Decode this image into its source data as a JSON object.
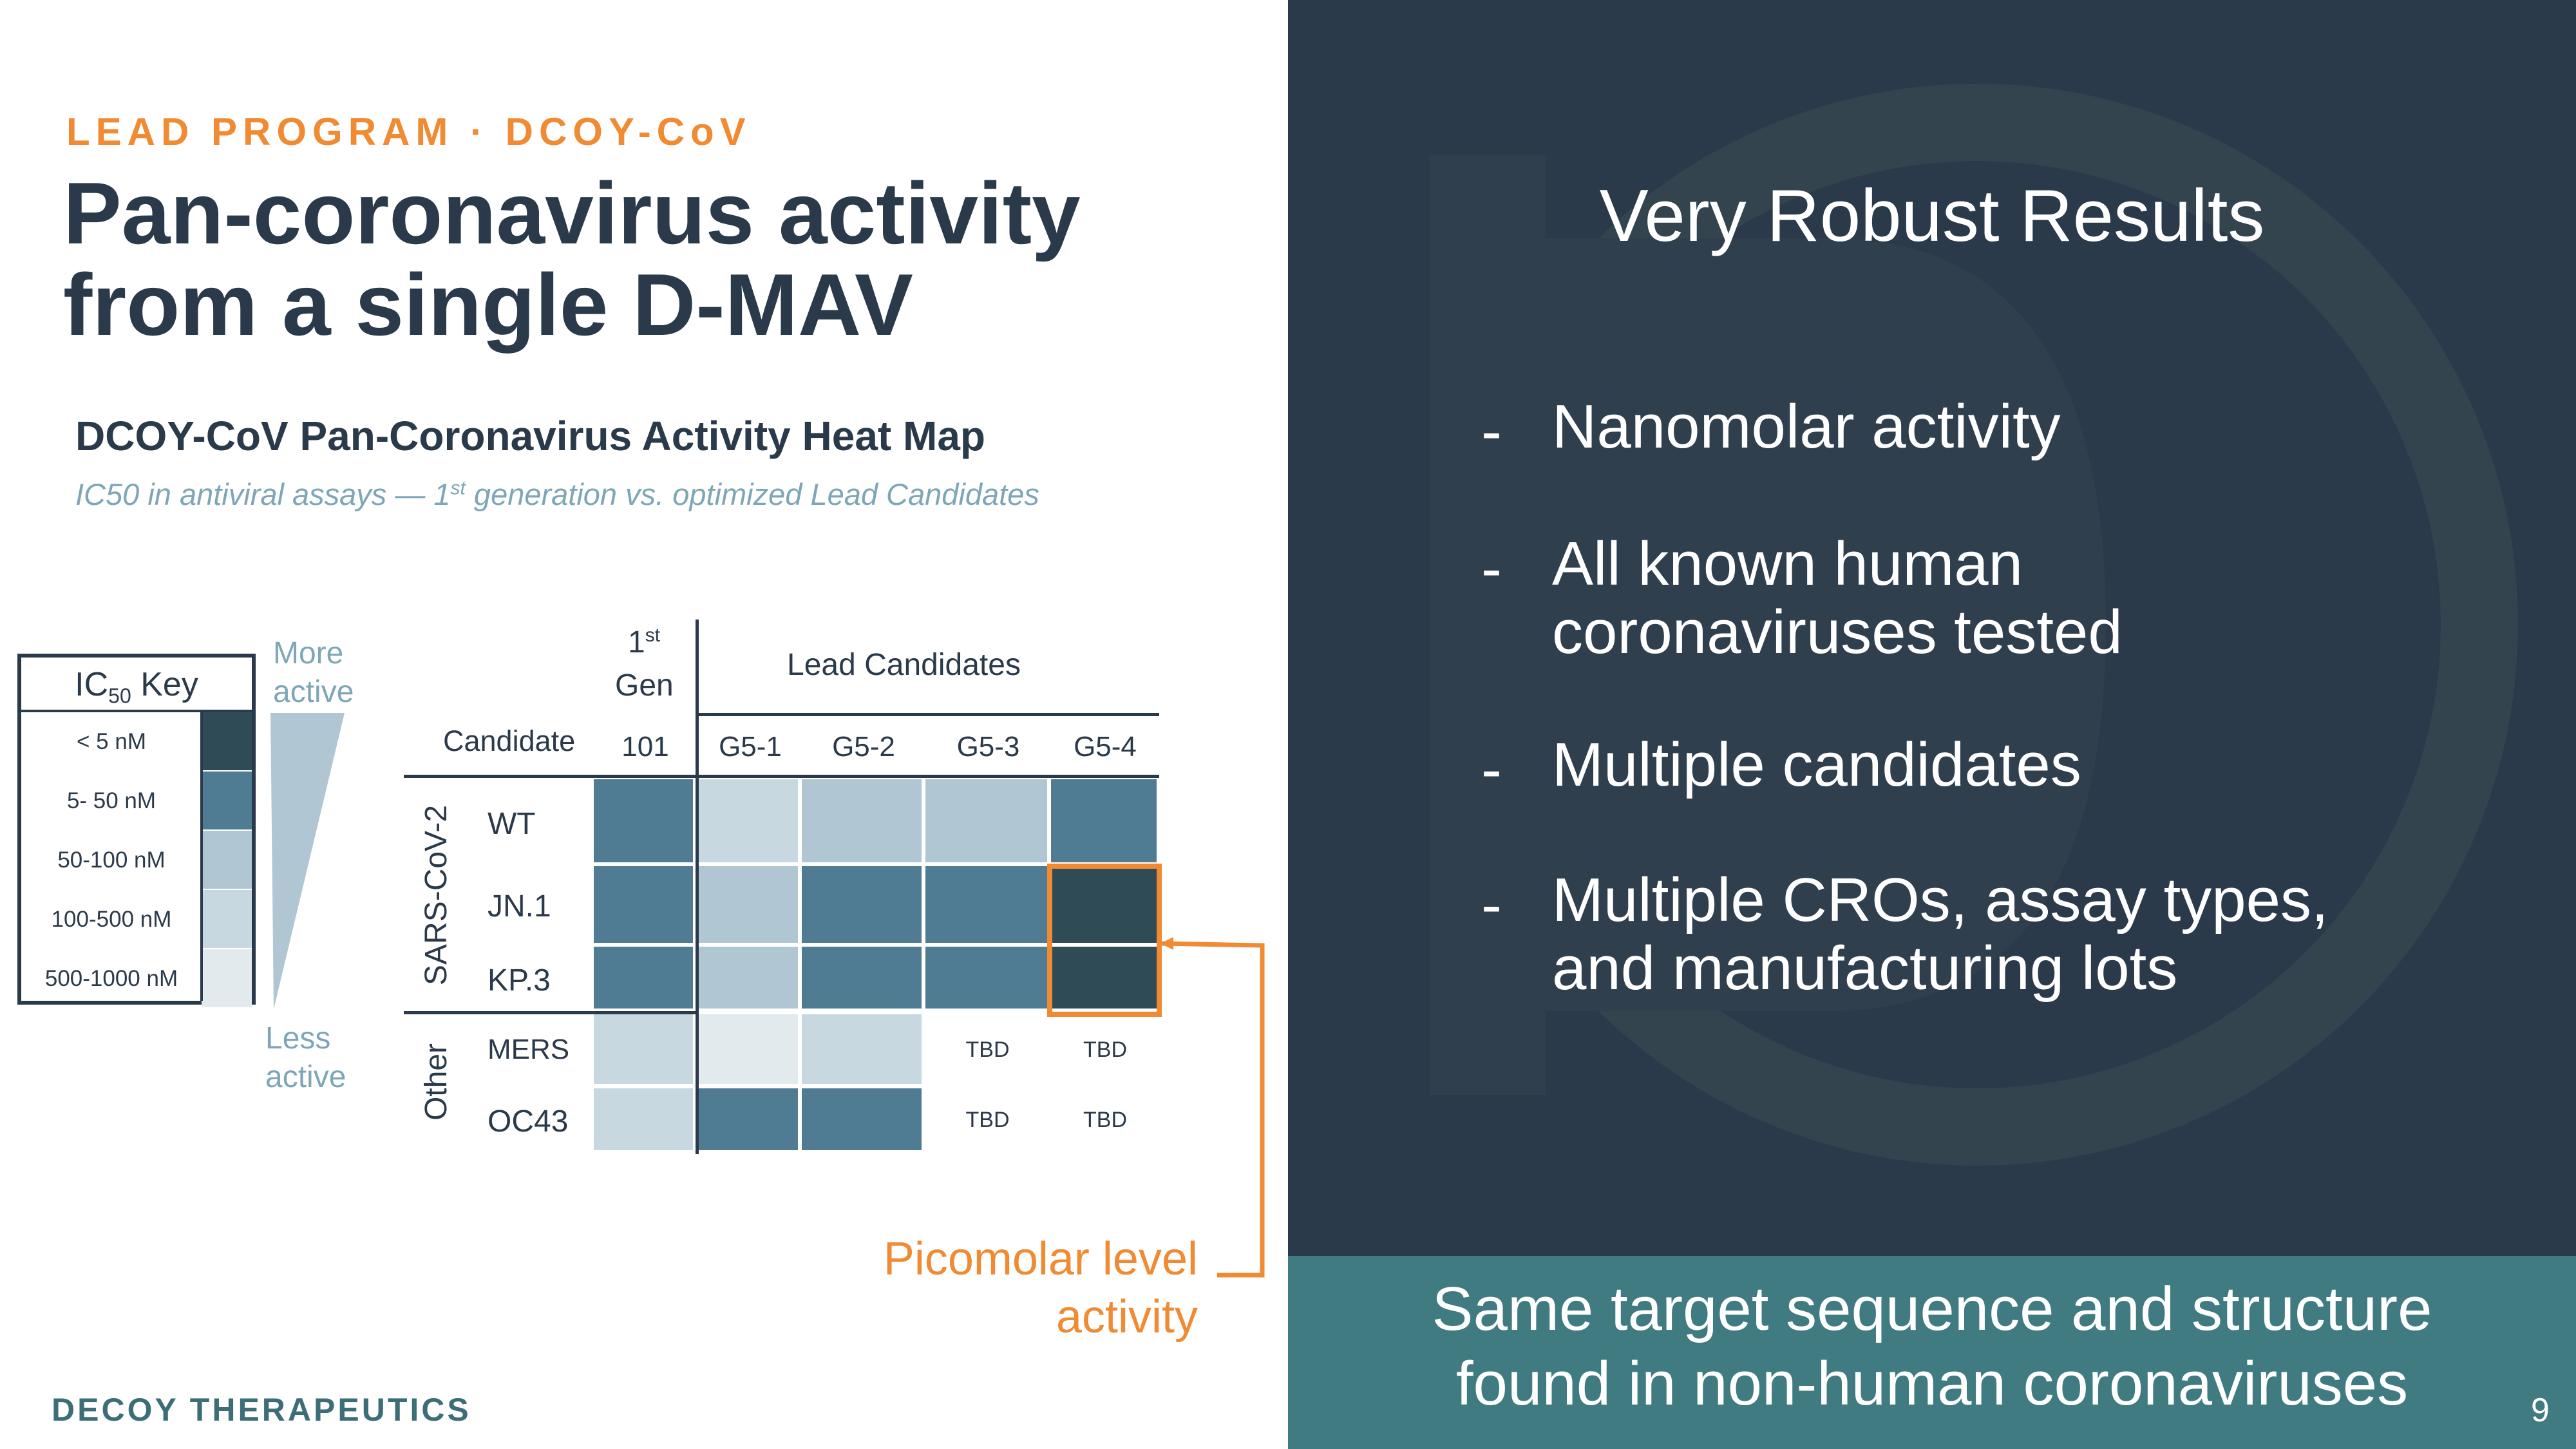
{
  "header": {
    "eyebrow": "LEAD PROGRAM · DCOY-CoV",
    "title_line1": "Pan-coronavirus activity",
    "title_line2": "from a single D-MAV"
  },
  "heatmap": {
    "title": "DCOY-CoV Pan-Coronavirus Activity Heat Map",
    "subtitle_pre": "IC50 in antiviral assays — 1",
    "subtitle_sup": "st",
    "subtitle_post": " generation vs. optimized Lead Candidates",
    "key": {
      "header_main": "IC",
      "header_sub": "50",
      "header_post": " Key",
      "rows": [
        {
          "label": "< 5 nM",
          "color": "#2e4b56"
        },
        {
          "label": "5- 50 nM",
          "color": "#4f7c92"
        },
        {
          "label": "50-100 nM",
          "color": "#b0c7d3"
        },
        {
          "label": "100-500 nM",
          "color": "#c7d8e1"
        },
        {
          "label": "500-1000 nM",
          "color": "#e2eaee"
        }
      ]
    },
    "more_active": "More\nactive",
    "less_active": "Less\nactive",
    "columns": {
      "gen_label_pre": "1",
      "gen_label_sup": "st",
      "gen_label_post": "Gen",
      "lead_label": "Lead Candidates",
      "candidate_label": "Candidate",
      "names": [
        "101",
        "G5-1",
        "G5-2",
        "G5-3",
        "G5-4"
      ]
    },
    "groups": [
      {
        "name": "SARS-CoV-2",
        "rows": [
          "WT",
          "JN.1",
          "KP.3"
        ]
      },
      {
        "name": "Other",
        "rows": [
          "MERS",
          "OC43"
        ]
      }
    ],
    "cells": [
      [
        "#4f7c92",
        "#c7d8e1",
        "#b0c7d3",
        "#b0c7d3",
        "#4f7c92"
      ],
      [
        "#4f7c92",
        "#b0c7d3",
        "#4f7c92",
        "#4f7c92",
        "#2e4b56"
      ],
      [
        "#4f7c92",
        "#b0c7d3",
        "#4f7c92",
        "#4f7c92",
        "#2e4b56"
      ],
      [
        "#c7d8e1",
        "#e2eaee",
        "#c7d8e1",
        "TBD",
        "TBD"
      ],
      [
        "#c7d8e1",
        "#4f7c92",
        "#4f7c92",
        "TBD",
        "TBD"
      ]
    ],
    "callout": "Picomolar level\nactivity",
    "callout_color": "#f08a33"
  },
  "right_panel": {
    "heading": "Very Robust Results",
    "bullets": [
      {
        "dash": "-",
        "lines": [
          "Nanomolar activity"
        ]
      },
      {
        "dash": "-",
        "lines": [
          "All known human",
          "coronaviruses tested"
        ]
      },
      {
        "dash": "-",
        "lines": [
          "Multiple candidates"
        ]
      },
      {
        "dash": "-",
        "lines": [
          "Multiple CROs, assay types,",
          "and manufacturing lots"
        ]
      }
    ],
    "banner_line1": "Same target sequence and structure",
    "banner_line2": "found in non-human coronaviruses",
    "background_color": "#2b3a4a",
    "banner_color": "#3f7b80"
  },
  "footer": {
    "brand": "DECOY THERAPEUTICS",
    "page_number": "9"
  }
}
